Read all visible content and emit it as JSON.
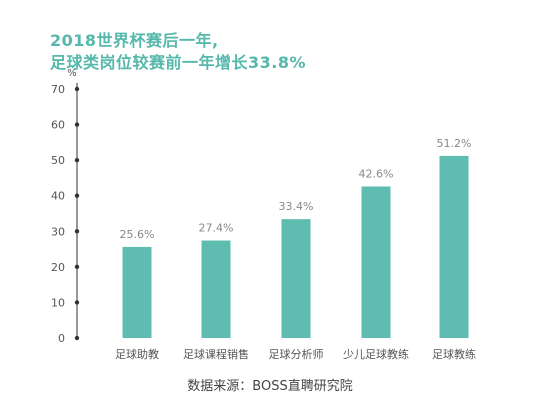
{
  "title_line1": "2018世界杯赛后一年,",
  "title_line2": "足球类岗位较赛前一年增长33.8%",
  "source": "数据来源：BOSS直聘研究院",
  "colors": {
    "bar": "#5fbcb0",
    "title": "#55b8ab",
    "axis": "#333333",
    "tick_text": "#555555",
    "label_text": "#888888"
  },
  "chart_data": {
    "type": "bar",
    "categories": [
      "足球助教",
      "足球课程销售",
      "足球分析师",
      "少儿足球教练",
      "足球教练"
    ],
    "values": [
      25.6,
      27.4,
      33.4,
      42.6,
      51.2
    ],
    "data_labels": [
      "25.6%",
      "27.4%",
      "33.4%",
      "42.6%",
      "51.2%"
    ],
    "ylabel": "%",
    "ylim": [
      0,
      70
    ],
    "yticks": [
      0,
      10,
      20,
      30,
      40,
      50,
      60,
      70
    ],
    "grid": false,
    "legend": "none"
  }
}
